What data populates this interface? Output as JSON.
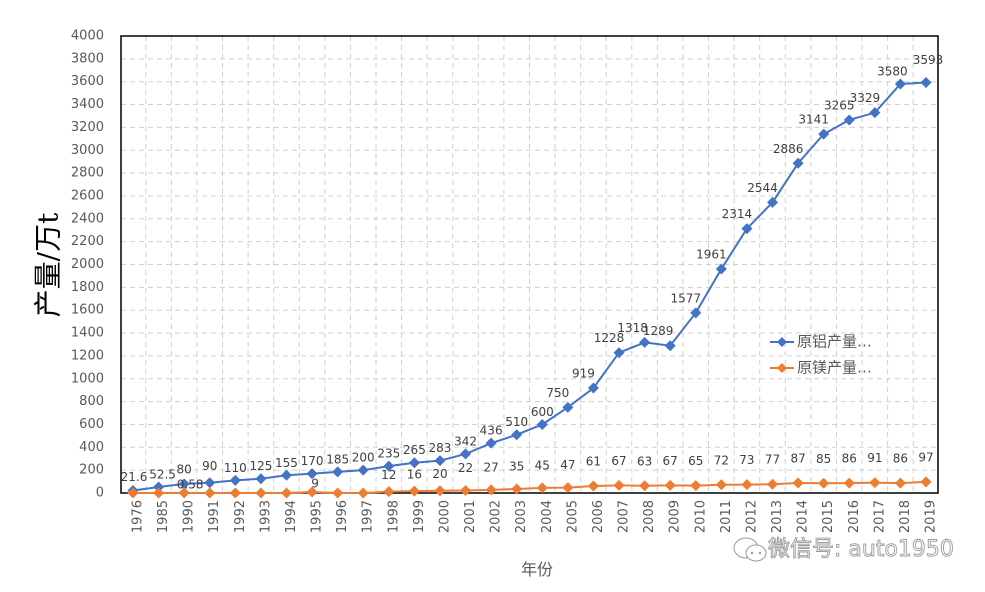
{
  "chart_data": {
    "type": "line",
    "title": "",
    "xlabel": "年份",
    "ylabel": "产量/万t",
    "ylim": [
      0,
      4000
    ],
    "ytick_step": 200,
    "yticks": [
      "0",
      "200",
      "400",
      "600",
      "800",
      "1000",
      "1200",
      "1400",
      "1600",
      "1800",
      "2000",
      "2200",
      "2400",
      "2600",
      "2800",
      "3000",
      "3200",
      "3400",
      "3600",
      "3800",
      "4000"
    ],
    "grid": true,
    "legend_position": "right",
    "categories": [
      "1976",
      "1985",
      "1990",
      "1991",
      "1992",
      "1993",
      "1994",
      "1995",
      "1996",
      "1997",
      "1998",
      "1999",
      "2000",
      "2001",
      "2002",
      "2003",
      "2004",
      "2005",
      "2006",
      "2007",
      "2008",
      "2009",
      "2010",
      "2011",
      "2012",
      "2013",
      "2014",
      "2015",
      "2016",
      "2017",
      "2018",
      "2019"
    ],
    "series": [
      {
        "name": "原铝产量…",
        "color": "#4472C4",
        "values": [
          21.6,
          52.5,
          80,
          90,
          110,
          125,
          155,
          170,
          185,
          200,
          235,
          265,
          283,
          342,
          436,
          510,
          600,
          750,
          919,
          1228,
          1318,
          1289,
          1577,
          1961,
          2314,
          2544,
          2886,
          3141,
          3265,
          3329,
          3580,
          3593
        ],
        "labels": [
          "21.6",
          "52.5",
          "80",
          "90",
          "110",
          "125",
          "155",
          "170",
          "185",
          "200",
          "235",
          "265",
          "283",
          "342",
          "436",
          "510",
          "600",
          "750",
          "919",
          "1228",
          "1318",
          "1289",
          "1577",
          "1961",
          "2314",
          "2544",
          "2886",
          "3141",
          "3265",
          "3329",
          "3580",
          "3593"
        ]
      },
      {
        "name": "原镁产量…",
        "color": "#ED7D31",
        "values": [
          0,
          0,
          0.58,
          0,
          0,
          0,
          0,
          9,
          0,
          0,
          12,
          16,
          20,
          22,
          27,
          35,
          45,
          47,
          61,
          67,
          63,
          67,
          65,
          72,
          73,
          77,
          87,
          85,
          86,
          91,
          86,
          97
        ],
        "labels": [
          "",
          "",
          "0.58",
          "",
          "",
          "",
          "",
          "9",
          "",
          "",
          "12",
          "16",
          "20",
          "22",
          "27",
          "35",
          "45",
          "47",
          "61",
          "67",
          "63",
          "67",
          "65",
          "72",
          "73",
          "77",
          "87",
          "85",
          "86",
          "91",
          "86",
          "97"
        ]
      }
    ]
  },
  "watermark": {
    "icon": "wechat-icon",
    "text": "微信号: auto1950"
  }
}
